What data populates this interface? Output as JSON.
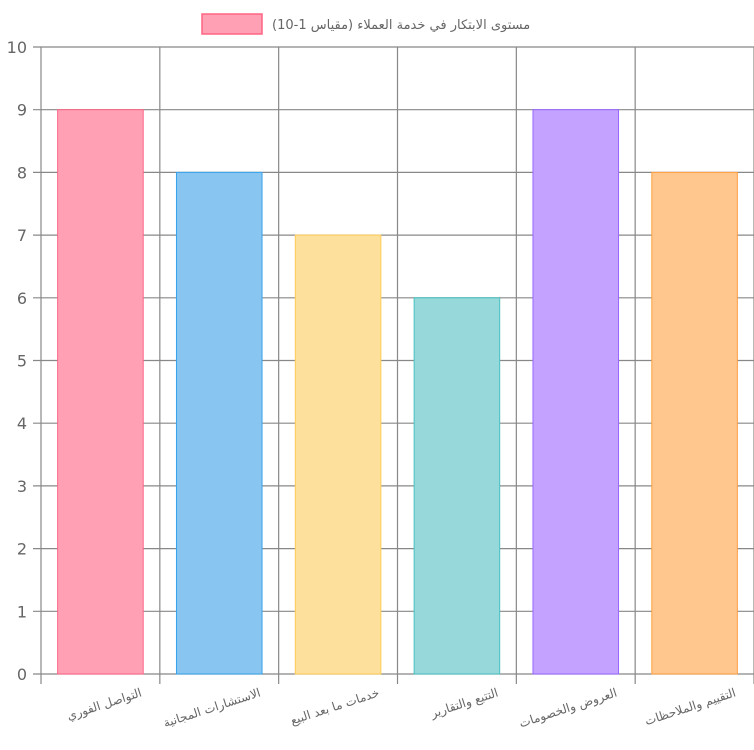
{
  "chart_data": {
    "type": "bar",
    "legend": {
      "label": "مستوى الابتكار في خدمة العملاء (مقياس 1-10)",
      "position": "top",
      "color": "#ff6384"
    },
    "categories": [
      "التواصل الفوري",
      "الاستشارات المجانية",
      "خدمات ما بعد البيع",
      "التتبع والتقارير",
      "العروض والخصومات",
      "التقييم والملاحظات"
    ],
    "series": [
      {
        "name": "مستوى الابتكار في خدمة العملاء (مقياس 1-10)",
        "values": [
          9,
          8,
          7,
          6,
          9,
          8
        ]
      }
    ],
    "ylim": [
      0,
      10
    ],
    "y_ticks": [
      0,
      1,
      2,
      3,
      4,
      5,
      6,
      7,
      8,
      9,
      10
    ],
    "grid": true,
    "bar_colors": [
      {
        "fill": "#ffa0b4",
        "stroke": "#ff6384"
      },
      {
        "fill": "#88c5f0",
        "stroke": "#36a2eb"
      },
      {
        "fill": "#fde09c",
        "stroke": "#ffcd56"
      },
      {
        "fill": "#97d9da",
        "stroke": "#4bc0c0"
      },
      {
        "fill": "#c4a2ff",
        "stroke": "#9966ff"
      },
      {
        "fill": "#ffc68e",
        "stroke": "#ff9f40"
      }
    ]
  }
}
